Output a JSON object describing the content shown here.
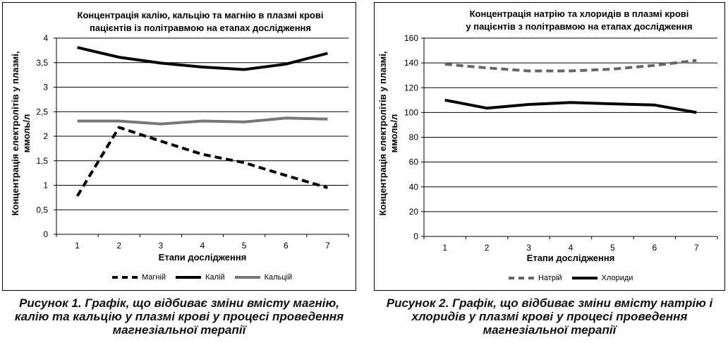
{
  "colors": {
    "potassium": "#000000",
    "calcium": "#777777",
    "magnesium": "#000000",
    "sodium": "#666666",
    "chlorides": "#000000"
  },
  "captions": {
    "fig1": "Рисунок 1. Графік, що відбиває зміни вмісту магнію, калію та кальцію у плазмі крові у процесі проведення магнезіальної терапії",
    "fig2": "Рисунок 2. Графік, що відбиває зміни вмісту натрію і хлоридів у плазмі крові у процесі проведення магнезіальної терапії"
  },
  "chart_data": [
    {
      "type": "line",
      "title": "Концентрація калію, кальцію та магнію в плазмі крові пацієнтів із політравмою на етапах дослідження",
      "xlabel": "Етапи дослідження",
      "ylabel": "Концентрація електролітів у плазмі, ммоль/л",
      "categories": [
        "1",
        "2",
        "3",
        "4",
        "5",
        "6",
        "7"
      ],
      "ylim": [
        0,
        4
      ],
      "yticks": [
        "0",
        "0,5",
        "1",
        "1,5",
        "2",
        "2,5",
        "3",
        "3,5",
        "4"
      ],
      "yticks_values": [
        0,
        0.5,
        1,
        1.5,
        2,
        2.5,
        3,
        3.5,
        4
      ],
      "grid": true,
      "legend": "bottom",
      "series": [
        {
          "name": "Магній",
          "values": [
            0.78,
            2.18,
            1.9,
            1.63,
            1.46,
            1.2,
            0.95
          ],
          "style": "dashed",
          "color": "#000000"
        },
        {
          "name": "Калій",
          "values": [
            3.81,
            3.61,
            3.49,
            3.41,
            3.36,
            3.47,
            3.69
          ],
          "style": "solid",
          "color": "#000000"
        },
        {
          "name": "Кальцій",
          "values": [
            2.31,
            2.31,
            2.25,
            2.31,
            2.29,
            2.37,
            2.35
          ],
          "style": "solid",
          "color": "#777777"
        }
      ]
    },
    {
      "type": "line",
      "title": "Концентрація натрію та хлоридів в плазмі крові у пацієнтів з політравмою на етапах дослідження",
      "xlabel": "Етапи дослідження",
      "ylabel": "Концентрація електролітів у плазмі, ммоль/л",
      "categories": [
        "1",
        "2",
        "3",
        "4",
        "5",
        "6",
        "7"
      ],
      "ylim": [
        0,
        160
      ],
      "yticks": [
        "0",
        "20",
        "40",
        "60",
        "80",
        "100",
        "120",
        "140",
        "160"
      ],
      "yticks_values": [
        0,
        20,
        40,
        60,
        80,
        100,
        120,
        140,
        160
      ],
      "grid": true,
      "legend": "bottom",
      "series": [
        {
          "name": "Натрій",
          "values": [
            139,
            136,
            133.5,
            133.5,
            135,
            138,
            142
          ],
          "style": "dashed",
          "color": "#666666"
        },
        {
          "name": "Хлориди",
          "values": [
            110,
            103.5,
            106.5,
            108,
            107,
            106,
            100
          ],
          "style": "solid",
          "color": "#000000"
        }
      ]
    }
  ]
}
